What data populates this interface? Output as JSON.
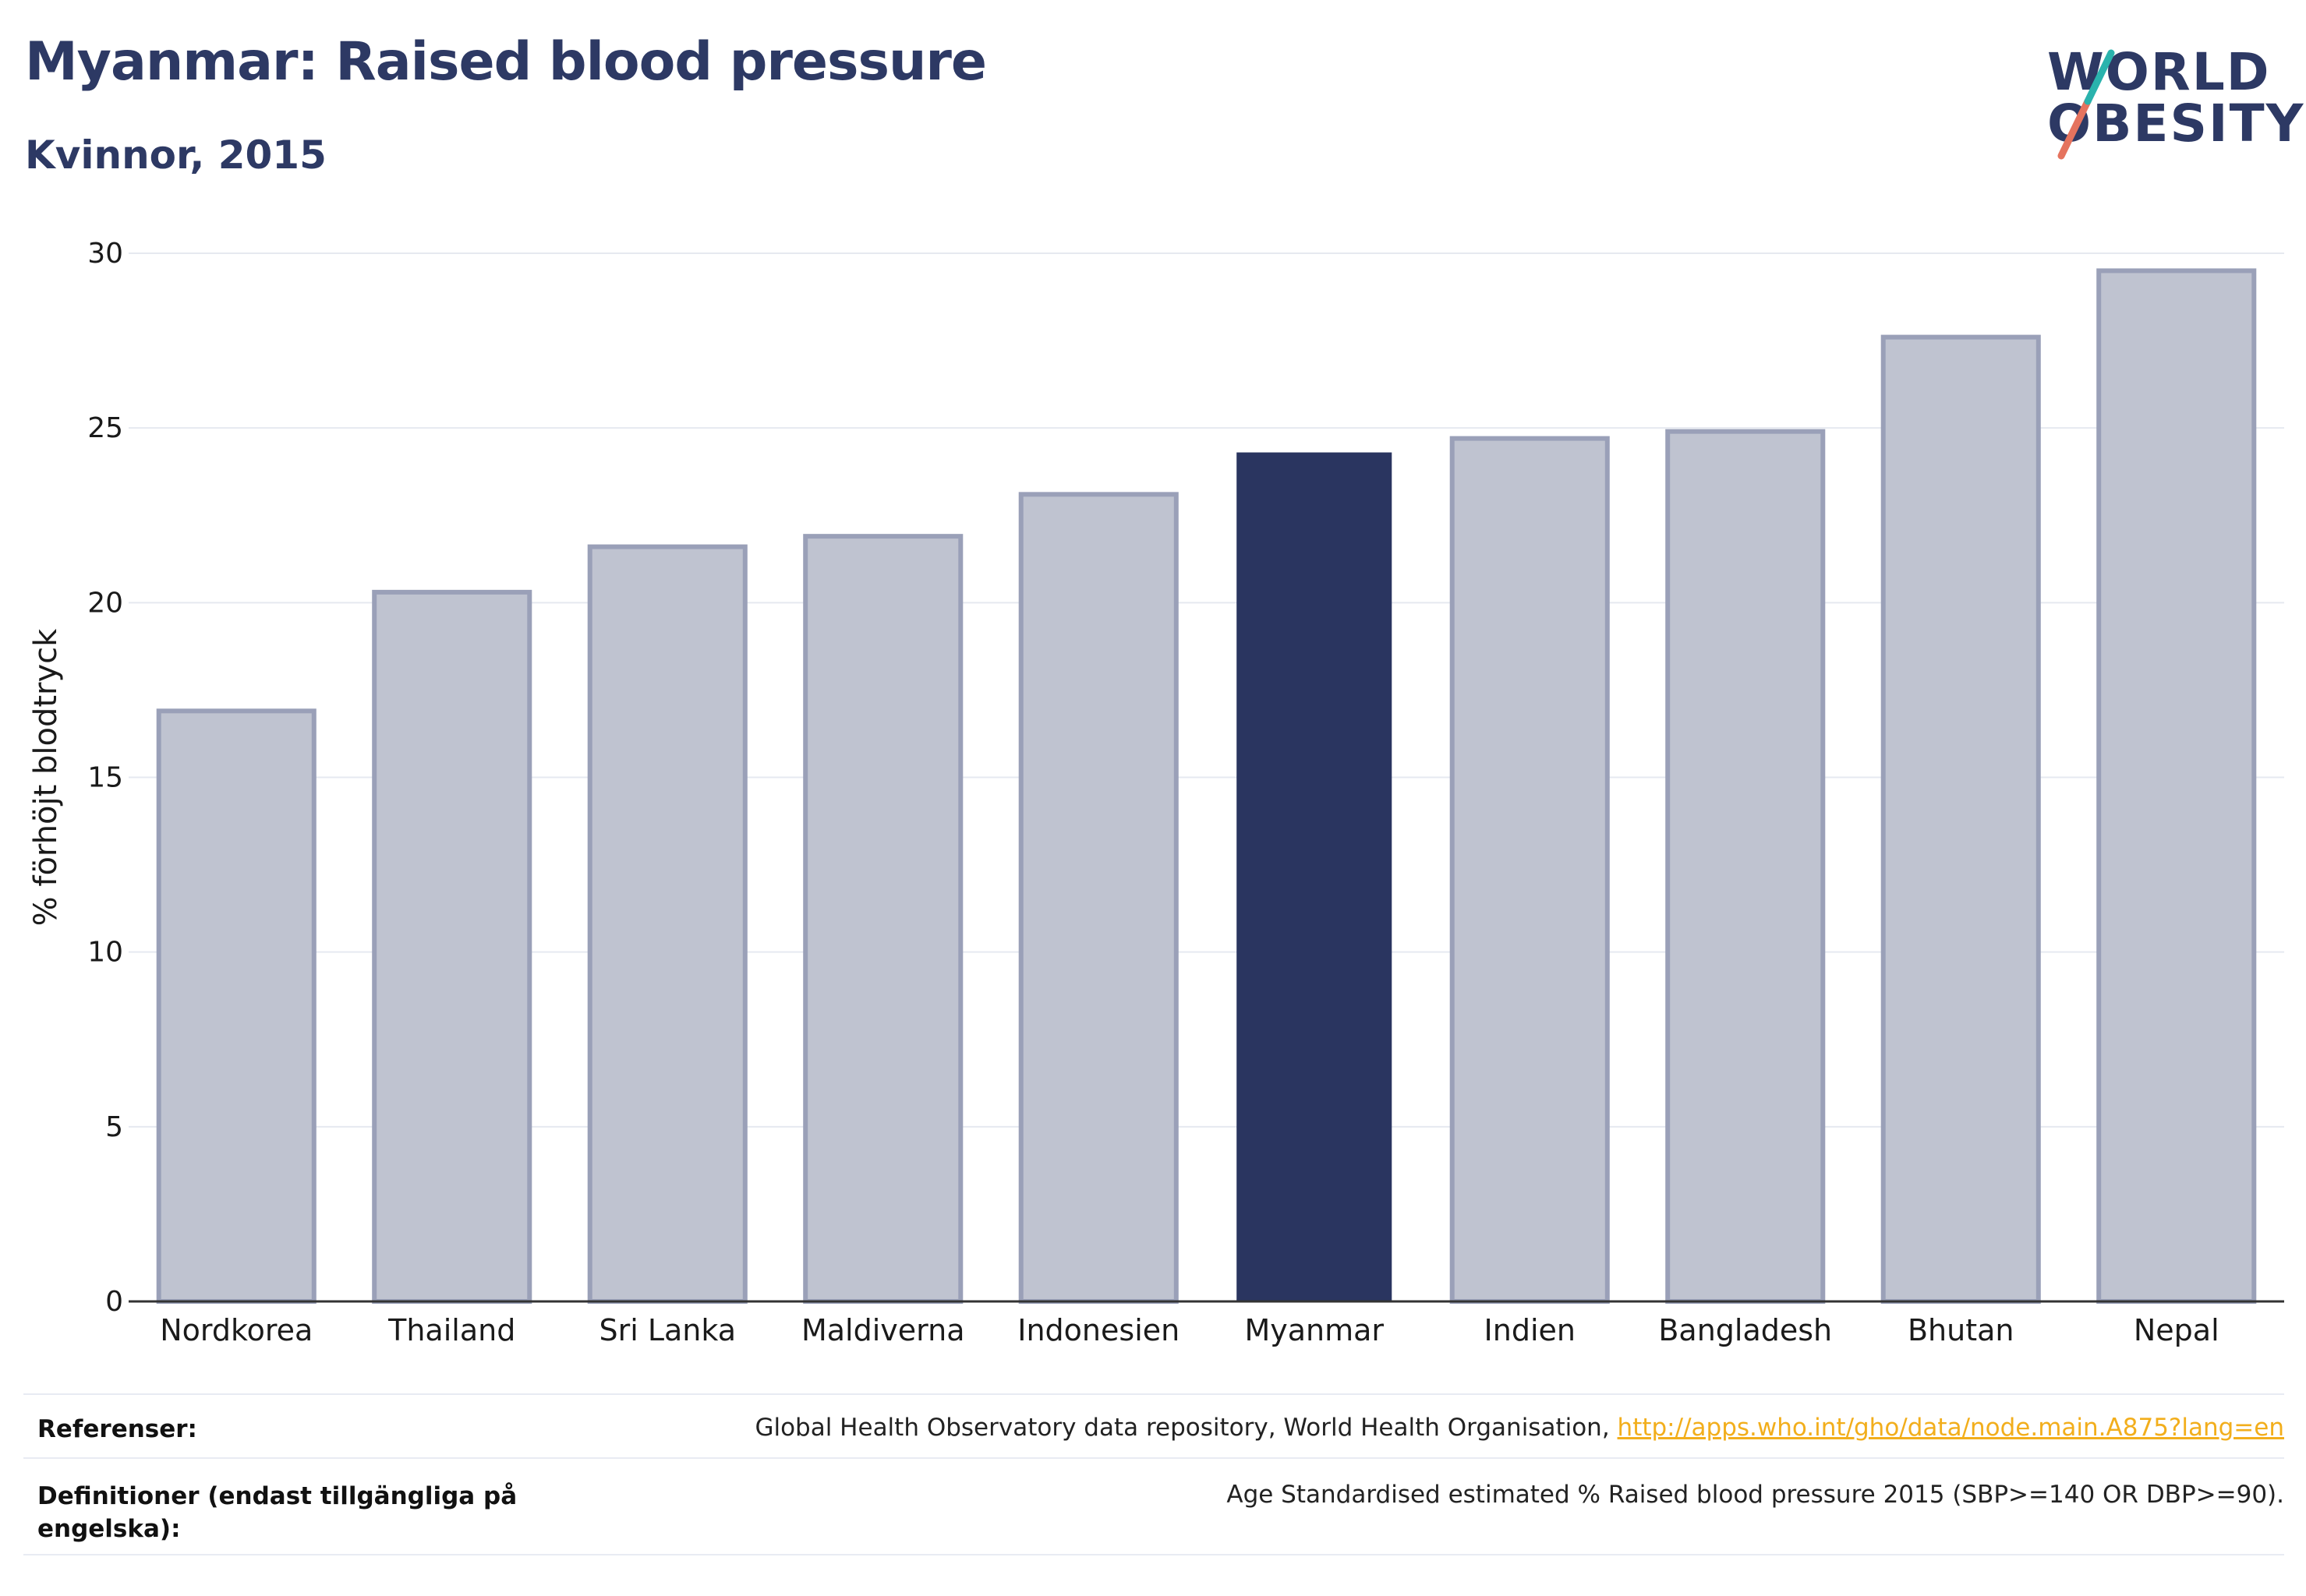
{
  "title": "Myanmar: Raised blood pressure",
  "subtitle": "Kvinnor, 2015",
  "logo": {
    "line1": "WORLD",
    "line2": "OBESITY"
  },
  "chart_data": {
    "type": "bar",
    "categories": [
      "Nordkorea",
      "Thailand",
      "Sri Lanka",
      "Maldiverna",
      "Indonesien",
      "Myanmar",
      "Indien",
      "Bangladesh",
      "Bhutan",
      "Nepal"
    ],
    "values": [
      16.9,
      20.3,
      21.6,
      21.9,
      23.1,
      24.3,
      24.7,
      24.9,
      27.6,
      29.5
    ],
    "highlight": "Myanmar",
    "ylabel": "% förhöjt blodtryck",
    "xlabel": "",
    "ylim": [
      0,
      30
    ],
    "yticks": [
      0,
      5,
      10,
      15,
      20,
      25,
      30
    ],
    "grid": true,
    "colors": {
      "default_fill": "#bfc3d0",
      "default_stroke": "#9aa0b8",
      "highlight_fill": "#2a3560"
    }
  },
  "footer": {
    "references_label": "Referenser:",
    "references_text": "Global Health Observatory data repository, World Health Organisation, ",
    "references_link": "http://apps.who.int/gho/data/node.main.A875?lang=en",
    "definitions_label": "Definitioner (endast tillgängliga på engelska):",
    "definitions_text": "Age Standardised estimated % Raised blood pressure 2015 (SBP>=140 OR DBP>=90)."
  }
}
